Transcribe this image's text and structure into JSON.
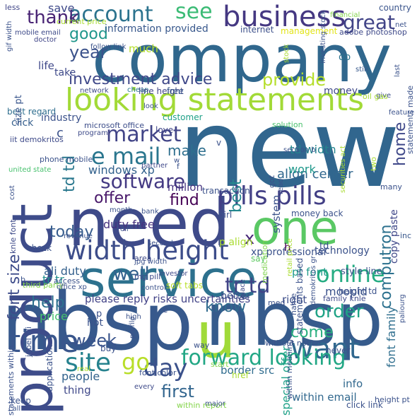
{
  "words": [
    {
      "text": "company",
      "color": "#30678d"
    },
    {
      "text": "new",
      "color": "#31668e"
    },
    {
      "text": "nbsp",
      "color": "#37598c"
    },
    {
      "text": "nbsp",
      "color": "#365b8c"
    },
    {
      "text": "need",
      "color": "#3e4a89"
    },
    {
      "text": "service",
      "color": "#2d718e"
    },
    {
      "text": "one",
      "color": "#5ac864"
    },
    {
      "text": "product",
      "color": "#3e4c8a"
    },
    {
      "text": "u",
      "color": "#a0da39"
    },
    {
      "text": "looking statements",
      "color": "#a2da37"
    },
    {
      "text": "business",
      "color": "#453882"
    },
    {
      "text": "width height",
      "color": "#3d4d8a"
    },
    {
      "text": "time",
      "color": "#39568c"
    },
    {
      "text": "pills pills",
      "color": "#423f85"
    },
    {
      "text": "see",
      "color": "#3bbb75"
    },
    {
      "text": "account",
      "color": "#2c738e"
    },
    {
      "text": "market",
      "color": "#414487"
    },
    {
      "text": "want",
      "color": "#31688e"
    },
    {
      "text": "forward looking",
      "color": "#22a785"
    },
    {
      "text": "investment advice",
      "color": "#3f4889"
    },
    {
      "text": "e mail",
      "color": "#2a768e"
    },
    {
      "text": "software",
      "color": "#443a83"
    },
    {
      "text": "site",
      "color": "#26828e"
    },
    {
      "text": "day",
      "color": "#3b518b"
    },
    {
      "text": "online",
      "color": "#25ac82"
    },
    {
      "text": "order",
      "color": "#20a386"
    },
    {
      "text": "tr td",
      "color": "#414487"
    },
    {
      "text": "well",
      "color": "#34618d"
    },
    {
      "text": "font size",
      "color": "#3e4c8a"
    },
    {
      "text": "go",
      "color": "#b8de29"
    },
    {
      "text": "week",
      "color": "#3a548c"
    },
    {
      "text": "first",
      "color": "#32658e"
    },
    {
      "text": "know",
      "color": "#306a8e"
    },
    {
      "text": "provide",
      "color": "#b5de2b"
    },
    {
      "text": "great",
      "color": "#414487"
    },
    {
      "text": "year",
      "color": "#3b528b"
    },
    {
      "text": "thank",
      "color": "#482374"
    },
    {
      "text": "good",
      "color": "#1f968b"
    },
    {
      "text": "td td",
      "color": "#2a788e"
    },
    {
      "text": "best",
      "color": "#23888e"
    },
    {
      "text": "find",
      "color": "#440154"
    },
    {
      "text": "home",
      "color": "#3f4889"
    },
    {
      "text": "computron",
      "color": "#2c718e"
    },
    {
      "text": "today",
      "color": "#365c8d"
    },
    {
      "text": "help",
      "color": "#2d708e"
    },
    {
      "text": "come",
      "color": "#29af7f"
    },
    {
      "text": "x",
      "color": "#482878"
    },
    {
      "text": "offer",
      "color": "#481769"
    },
    {
      "text": "make",
      "color": "#2e6f8e"
    },
    {
      "text": "save",
      "color": "#3e4989"
    },
    {
      "text": "tr tr",
      "color": "#21908d"
    },
    {
      "text": "font family",
      "color": "#2e6e8e"
    },
    {
      "text": "align center",
      "color": "#31678e"
    },
    {
      "text": "windows xp",
      "color": "#33628d"
    },
    {
      "text": "duty free",
      "color": "#46327e"
    },
    {
      "text": "copy paste",
      "color": "#3f4788"
    },
    {
      "text": "ali duty",
      "color": "#34608d"
    },
    {
      "text": "please reply risks uncertainties",
      "color": "#414287"
    },
    {
      "text": "within email",
      "color": "#31688e"
    },
    {
      "text": "border src",
      "color": "#2f6c8e"
    },
    {
      "text": "special offer",
      "color": "#1fa188"
    },
    {
      "text": "pt font",
      "color": "#1f9a8a"
    },
    {
      "text": "td width",
      "color": "#25848e"
    },
    {
      "text": "moopid",
      "color": "#3b528b"
    },
    {
      "text": "people",
      "color": "#33638d"
    },
    {
      "text": "thing",
      "color": "#3f4889"
    },
    {
      "text": "info",
      "color": "#31688e"
    },
    {
      "text": "right",
      "color": "#3d4e8a"
    },
    {
      "text": "price",
      "color": "#48c16e"
    },
    {
      "text": "xp professional",
      "color": "#3b528b"
    },
    {
      "text": "technology",
      "color": "#3b528b"
    },
    {
      "text": "work",
      "color": "#1f988b"
    },
    {
      "text": "million",
      "color": "#46337f"
    },
    {
      "text": "much",
      "color": "#b5de2b"
    },
    {
      "text": "information provided",
      "color": "#38588c"
    },
    {
      "text": "internet",
      "color": "#3c4f8a"
    },
    {
      "text": "management",
      "color": "#e2e418"
    },
    {
      "text": "adobe photoshop",
      "color": "#3e4989"
    },
    {
      "text": "country",
      "color": "#3a548c"
    },
    {
      "text": "less",
      "color": "#404688"
    },
    {
      "text": "mobile email",
      "color": "#3e4a89"
    },
    {
      "text": "doctor",
      "color": "#404688"
    },
    {
      "text": "life",
      "color": "#3f4889"
    },
    {
      "text": "take",
      "color": "#3e4989"
    },
    {
      "text": "money",
      "color": "#3e4989"
    },
    {
      "text": "oo",
      "color": "#2c738e"
    },
    {
      "text": "still",
      "color": "#38598c"
    },
    {
      "text": "give",
      "color": "#3d4e8a"
    },
    {
      "text": "oil gas",
      "color": "#a8db34"
    },
    {
      "text": "statements made",
      "color": "#3b528b"
    },
    {
      "text": "feature",
      "color": "#3b528b"
    },
    {
      "text": "cheap",
      "color": "#2a788e"
    },
    {
      "text": "line height",
      "color": "#404588"
    },
    {
      "text": "free",
      "color": "#38588c"
    },
    {
      "text": "network",
      "color": "#3e4a89"
    },
    {
      "text": "best regard",
      "color": "#2e6e8e"
    },
    {
      "text": "click",
      "color": "#355f8d"
    },
    {
      "text": "industry",
      "color": "#3b528b"
    },
    {
      "text": "customer",
      "color": "#1fa088"
    },
    {
      "text": "solution",
      "color": "#4ac16d"
    },
    {
      "text": "microsoft office",
      "color": "#3d4e8a"
    },
    {
      "text": "program",
      "color": "#3e4a89"
    },
    {
      "text": "love",
      "color": "#404688"
    },
    {
      "text": "size pt",
      "color": "#39568c"
    },
    {
      "text": "iit demokritos",
      "color": "#3e4a89"
    },
    {
      "text": "system",
      "color": "#3b528b"
    },
    {
      "text": "medication",
      "color": "#7fd34e"
    },
    {
      "text": "partner",
      "color": "#3f4889"
    },
    {
      "text": "united state",
      "color": "#48c16e"
    },
    {
      "text": "knle font",
      "color": "#3e4a89"
    },
    {
      "text": "check",
      "color": "#3b528b"
    },
    {
      "text": "transaction",
      "color": "#3b528b"
    },
    {
      "text": "month",
      "color": "#3b528b"
    },
    {
      "text": "bank",
      "color": "#3b528b"
    },
    {
      "text": "girl",
      "color": "#3b528b"
    },
    {
      "text": "oil",
      "color": "#3b528b"
    },
    {
      "text": "p align",
      "color": "#aadc32"
    },
    {
      "text": "area",
      "color": "#3e4a89"
    },
    {
      "text": "say",
      "color": "#5ec962"
    },
    {
      "text": "revenue",
      "color": "#3b528b"
    },
    {
      "text": "h",
      "color": "#440154"
    },
    {
      "text": "inc",
      "color": "#38588c"
    },
    {
      "text": "jpg width",
      "color": "#3b528b"
    },
    {
      "text": "mg pill",
      "color": "#3e4a89"
    },
    {
      "text": "investor",
      "color": "#3e4a89"
    },
    {
      "text": "style line",
      "color": "#3b528b"
    },
    {
      "text": "soft tabs",
      "color": "#b8de29"
    },
    {
      "text": "better",
      "color": "#3b528b"
    },
    {
      "text": "access",
      "color": "#3b528b"
    },
    {
      "text": "third party",
      "color": "#84d44b"
    },
    {
      "text": "office xp",
      "color": "#3b528b"
    },
    {
      "text": "control",
      "color": "#3b528b"
    },
    {
      "text": "place",
      "color": "#3e4a89"
    },
    {
      "text": "height td",
      "color": "#3b528b"
    },
    {
      "text": "family knle",
      "color": "#3e4a89"
    },
    {
      "text": "name",
      "color": "#3b528b"
    },
    {
      "text": "statements within",
      "color": "#3b528b"
    },
    {
      "text": "jebel ali",
      "color": "#3b528b"
    },
    {
      "text": "application",
      "color": "#3b528b"
    },
    {
      "text": "profile",
      "color": "#3b528b"
    },
    {
      "text": "high",
      "color": "#3b528b"
    },
    {
      "text": "buy",
      "color": "#3b528b"
    },
    {
      "text": "real",
      "color": "#b5de2b"
    },
    {
      "text": "every",
      "color": "#3e4a89"
    },
    {
      "text": "font color",
      "color": "#3b528b"
    },
    {
      "text": "way",
      "color": "#3b528b"
    },
    {
      "text": "start",
      "color": "#84d44b"
    },
    {
      "text": "within meaning",
      "color": "#3b528b"
    },
    {
      "text": "without notice",
      "color": "#3b528b"
    },
    {
      "text": "never",
      "color": "#3b528b"
    },
    {
      "text": "keep",
      "color": "#3b528b"
    },
    {
      "text": "call",
      "color": "#3b528b"
    },
    {
      "text": "within report",
      "color": "#84d44b"
    },
    {
      "text": "major",
      "color": "#3b528b"
    },
    {
      "text": "click link",
      "color": "#3b528b"
    },
    {
      "text": "height pt",
      "color": "#3b528b"
    },
    {
      "text": "paliourg",
      "color": "#3b528b"
    },
    {
      "text": "statements based",
      "color": "#3b528b"
    },
    {
      "text": "demokritos gr",
      "color": "#3b528b"
    },
    {
      "text": "retail price",
      "color": "#aadc32"
    },
    {
      "text": "money back",
      "color": "#3b528b"
    },
    {
      "text": "got",
      "color": "#3b528b"
    },
    {
      "text": "read",
      "color": "#3b528b"
    },
    {
      "text": "securities act",
      "color": "#aadc32"
    },
    {
      "text": "two",
      "color": "#aadc32"
    },
    {
      "text": "many",
      "color": "#3b528b"
    },
    {
      "text": "cost",
      "color": "#3b528b"
    },
    {
      "text": "phone mobile",
      "color": "#3b528b"
    },
    {
      "text": "w",
      "color": "#3b528b"
    },
    {
      "text": "section b",
      "color": "#3b528b"
    },
    {
      "text": "stock",
      "color": "#aadc32"
    },
    {
      "text": "investing stock",
      "color": "#3b528b"
    },
    {
      "text": "current price",
      "color": "#aadc32"
    },
    {
      "text": "follow link",
      "color": "#3b528b"
    },
    {
      "text": "look",
      "color": "#3b528b"
    },
    {
      "text": "gif width",
      "color": "#3b528b"
    },
    {
      "text": "financial",
      "color": "#84d44b"
    },
    {
      "text": "net",
      "color": "#3b528b"
    },
    {
      "text": "last",
      "color": "#3b528b"
    },
    {
      "text": "second",
      "color": "#3b528b"
    },
    {
      "text": "href",
      "color": "#aadc32"
    },
    {
      "text": "med",
      "color": "#3b528b"
    },
    {
      "text": "hot",
      "color": "#3b528b"
    },
    {
      "text": "p",
      "color": "#3b528b"
    },
    {
      "text": "c",
      "color": "#3b528b"
    },
    {
      "text": "f",
      "color": "#3b528b"
    },
    {
      "text": "b",
      "color": "#3b528b"
    },
    {
      "text": "v",
      "color": "#3b528b"
    },
    {
      "text": "e",
      "color": "#3b528b"
    },
    {
      "text": "td",
      "color": "#3b528b"
    },
    {
      "text": "r",
      "color": "#3b528b"
    }
  ]
}
